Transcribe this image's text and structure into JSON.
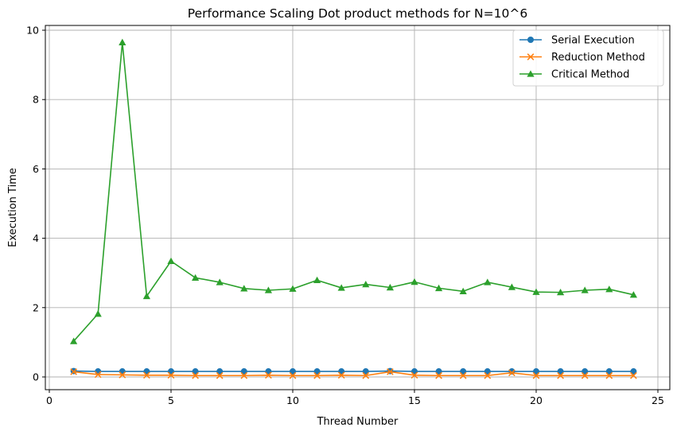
{
  "chart_data": {
    "type": "line",
    "title": "Performance Scaling Dot product methods for N=10^6",
    "xlabel": "Thread Number",
    "ylabel": "Execution Time",
    "xlim": [
      0,
      25
    ],
    "ylim": [
      0,
      10
    ],
    "xticks": [
      0,
      5,
      10,
      15,
      20,
      25
    ],
    "yticks": [
      0,
      2,
      4,
      6,
      8,
      10
    ],
    "grid": true,
    "legend_position": "top-right",
    "x": [
      1,
      2,
      3,
      4,
      5,
      6,
      7,
      8,
      9,
      10,
      11,
      12,
      13,
      14,
      15,
      16,
      17,
      18,
      19,
      20,
      21,
      22,
      23,
      24
    ],
    "series": [
      {
        "name": "Serial Execution",
        "color": "#1f77b4",
        "marker": "circle",
        "values": [
          0.17,
          0.16,
          0.16,
          0.16,
          0.16,
          0.16,
          0.16,
          0.16,
          0.16,
          0.16,
          0.16,
          0.16,
          0.16,
          0.17,
          0.16,
          0.16,
          0.16,
          0.16,
          0.16,
          0.16,
          0.16,
          0.16,
          0.16,
          0.16
        ]
      },
      {
        "name": "Reduction Method",
        "color": "#ff7f0e",
        "marker": "x",
        "values": [
          0.15,
          0.07,
          0.06,
          0.05,
          0.05,
          0.04,
          0.04,
          0.04,
          0.05,
          0.04,
          0.04,
          0.05,
          0.04,
          0.15,
          0.05,
          0.04,
          0.04,
          0.04,
          0.12,
          0.04,
          0.04,
          0.04,
          0.04,
          0.04
        ]
      },
      {
        "name": "Critical Method",
        "color": "#2ca02c",
        "marker": "triangle",
        "values": [
          1.03,
          1.82,
          9.65,
          2.33,
          3.34,
          2.86,
          2.73,
          2.55,
          2.5,
          2.54,
          2.79,
          2.57,
          2.67,
          2.58,
          2.74,
          2.56,
          2.47,
          2.73,
          2.59,
          2.45,
          2.44,
          2.5,
          2.53,
          2.37
        ]
      }
    ]
  }
}
